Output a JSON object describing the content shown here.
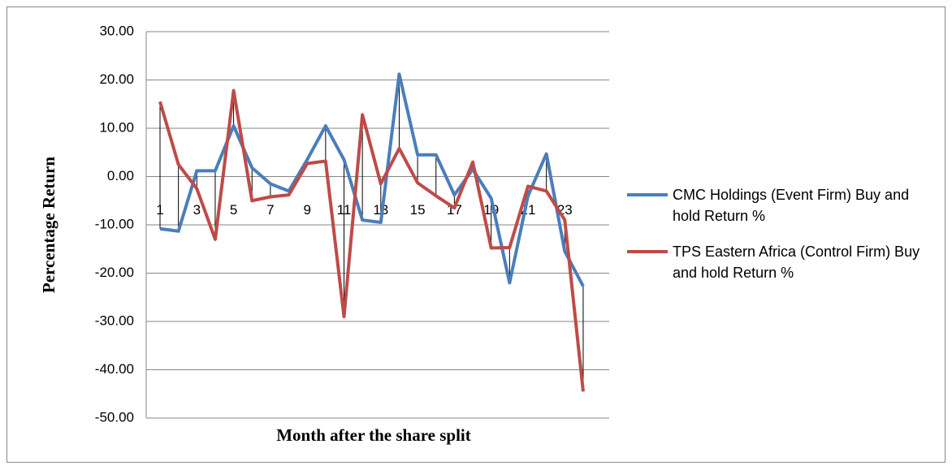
{
  "chart_data": {
    "type": "line",
    "y_label": "Percentage Return",
    "x_label": "Month after the share split",
    "categories": [
      1,
      null,
      3,
      null,
      5,
      null,
      7,
      null,
      9,
      null,
      11,
      null,
      13,
      null,
      15,
      null,
      17,
      null,
      19,
      null,
      21,
      null,
      23,
      null
    ],
    "series": [
      {
        "name": "CMC Holdings (Event Firm)  Buy and hold Return %",
        "color": "#4a7ebb",
        "values": [
          -10.8,
          -11.3,
          1.2,
          1.2,
          10.5,
          1.8,
          -1.5,
          -3,
          3.5,
          10.5,
          3.5,
          -9,
          -9.5,
          21.2,
          4.5,
          4.5,
          -3.8,
          1.5,
          -4.5,
          -22,
          -4,
          4.7,
          -15.5,
          -22.7
        ]
      },
      {
        "name": "TPS Eastern  Africa (Control Firm)  Buy and hold Return %",
        "color": "#be4b48",
        "values": [
          15.5,
          2.5,
          -2.5,
          -13,
          17.8,
          -5,
          -4.2,
          -3.8,
          2.7,
          3.2,
          -29,
          12.8,
          -1.5,
          5.8,
          -1.3,
          -4,
          -6.5,
          3,
          -14.8,
          -14.7,
          -2,
          -3,
          -9,
          -44.5
        ]
      }
    ],
    "high_low_lines": true,
    "ylim": [
      -50,
      30
    ],
    "yticks": [
      {
        "value": -50,
        "label": "-50.00"
      },
      {
        "value": -40,
        "label": "-40.00"
      },
      {
        "value": -30,
        "label": "-30.00"
      },
      {
        "value": -20,
        "label": "-20.00"
      },
      {
        "value": -10,
        "label": "-10.00"
      },
      {
        "value": 0,
        "label": "0.00"
      },
      {
        "value": 10,
        "label": "10.00"
      },
      {
        "value": 20,
        "label": "20.00"
      },
      {
        "value": 30,
        "label": "30.00"
      }
    ],
    "grid": true,
    "legend": "right"
  }
}
